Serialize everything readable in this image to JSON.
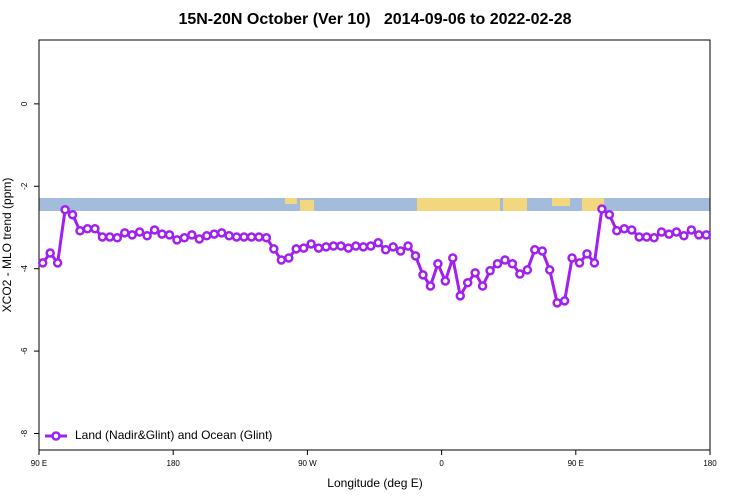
{
  "chart_data": {
    "type": "line",
    "title": "15N-20N October (Ver 10)   2014-09-06 to 2022-02-28",
    "xlabel": "Longitude (deg E)",
    "ylabel": "XCO2 - MLO trend (ppm)",
    "x": [
      92.5,
      97.5,
      102.5,
      107.5,
      112.5,
      117.5,
      122.5,
      127.5,
      132.5,
      137.5,
      142.5,
      147.5,
      152.5,
      157.5,
      162.5,
      167.5,
      172.5,
      177.5,
      182.5,
      187.5,
      192.5,
      197.5,
      202.5,
      207.5,
      212.5,
      217.5,
      222.5,
      227.5,
      232.5,
      237.5,
      242.5,
      247.5,
      252.5,
      257.5,
      262.5,
      267.5,
      272.5,
      277.5,
      282.5,
      287.5,
      292.5,
      297.5,
      302.5,
      307.5,
      312.5,
      317.5,
      322.5,
      327.5,
      332.5,
      337.5,
      342.5,
      347.5,
      352.5,
      357.5,
      362.5,
      367.5,
      372.5,
      377.5,
      382.5,
      387.5,
      392.5,
      397.5,
      402.5,
      407.5,
      412.5,
      417.5,
      422.5,
      427.5,
      432.5,
      437.5,
      442.5,
      447.5,
      452.5,
      457.5,
      462.5,
      467.5,
      472.5,
      477.5,
      482.5,
      487.5,
      492.5,
      497.5,
      502.5,
      507.5,
      512.5,
      517.5,
      522.5,
      527.5,
      532.5,
      537.5
    ],
    "series": [
      {
        "name": "Land (Nadir&Glint) and Ocean (Glint)",
        "color": "#a020f0",
        "values": [
          -3.86,
          -3.62,
          -3.86,
          -2.57,
          -2.69,
          -3.08,
          -3.03,
          -3.03,
          -3.23,
          -3.23,
          -3.25,
          -3.13,
          -3.18,
          -3.11,
          -3.2,
          -3.06,
          -3.16,
          -3.18,
          -3.3,
          -3.25,
          -3.18,
          -3.28,
          -3.2,
          -3.16,
          -3.13,
          -3.2,
          -3.23,
          -3.23,
          -3.23,
          -3.23,
          -3.25,
          -3.52,
          -3.79,
          -3.74,
          -3.52,
          -3.5,
          -3.4,
          -3.5,
          -3.47,
          -3.45,
          -3.45,
          -3.5,
          -3.45,
          -3.47,
          -3.45,
          -3.37,
          -3.54,
          -3.47,
          -3.57,
          -3.45,
          -3.69,
          -4.15,
          -4.42,
          -3.88,
          -4.3,
          -3.74,
          -4.66,
          -4.34,
          -4.1,
          -4.42,
          -4.05,
          -3.88,
          -3.79,
          -3.88,
          -4.13,
          -4.03,
          -3.54,
          -3.57,
          -4.03,
          -4.83,
          -4.78,
          -3.74,
          -3.86,
          -3.64,
          -3.86,
          -2.55,
          -2.69,
          -3.08,
          -3.03,
          -3.06,
          -3.23,
          -3.23,
          -3.25,
          -3.11,
          -3.16,
          -3.11,
          -3.2,
          -3.06,
          -3.18,
          -3.18
        ]
      }
    ],
    "xlim": [
      90,
      540
    ],
    "xticks": [
      {
        "value": 90,
        "label": "90 E"
      },
      {
        "value": 180,
        "label": "180"
      },
      {
        "value": 270,
        "label": "90 W"
      },
      {
        "value": 360,
        "label": "0"
      },
      {
        "value": 450,
        "label": "90 E"
      },
      {
        "value": 540,
        "label": "180"
      }
    ],
    "ylim": [
      -8.4,
      1.55
    ],
    "yticks": [
      0,
      -2,
      -4,
      -6,
      -8
    ],
    "legend": "bottom-left",
    "grid": false
  }
}
